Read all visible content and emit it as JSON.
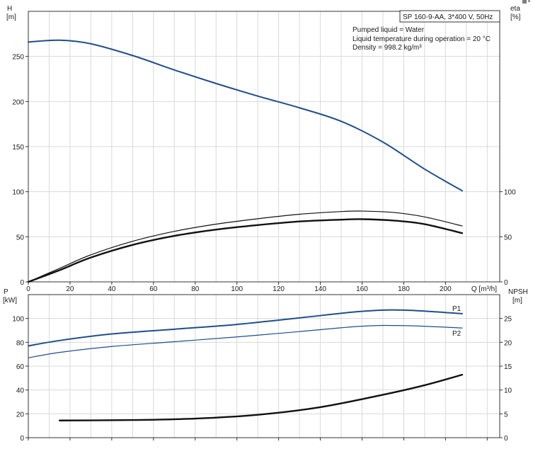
{
  "colors": {
    "blue": "#1f4e8c",
    "black": "#111111",
    "grid": "#d9d9d9"
  },
  "legend_box": {
    "title": "SP 160-9-AA, 3*400 V, 50Hz"
  },
  "info_lines": [
    "Pumped liquid = Water",
    "Liquid temperature during operation = 20 °C",
    "Density = 998.2 kg/m³"
  ],
  "chart_data": [
    {
      "type": "line",
      "panel": "top",
      "left_axis": {
        "label_line1": "H",
        "label_line2": "[m]",
        "ylim": [
          0,
          300
        ],
        "ticks": [
          0,
          50,
          100,
          150,
          200,
          250
        ]
      },
      "right_axis": {
        "label_line1": "eta",
        "label_line2": "[%]",
        "ylim": [
          0,
          300
        ],
        "ticks": [
          0,
          50,
          100
        ]
      },
      "x_axis": {
        "label": "Q [m³/h]",
        "xlim": [
          0,
          226
        ],
        "ticks": [
          0,
          20,
          40,
          60,
          80,
          100,
          120,
          140,
          160,
          180,
          200
        ]
      },
      "series": [
        {
          "key": "H",
          "color": "blue",
          "width": 2,
          "x": [
            0,
            15,
            30,
            50,
            70,
            90,
            110,
            130,
            150,
            170,
            190,
            208
          ],
          "y": [
            266,
            268,
            264,
            251,
            235,
            220,
            206,
            193,
            178,
            155,
            125,
            101
          ]
        },
        {
          "key": "eta",
          "color": "black",
          "width": 2.4,
          "x": [
            0,
            15,
            30,
            50,
            70,
            90,
            110,
            130,
            150,
            160,
            175,
            190,
            208
          ],
          "y": [
            0,
            13,
            27,
            41,
            51,
            58,
            63,
            67,
            69,
            69.5,
            68,
            64,
            54
          ]
        },
        {
          "key": "eta2",
          "color": "black",
          "width": 1.2,
          "x": [
            0,
            15,
            30,
            50,
            70,
            90,
            110,
            130,
            150,
            160,
            175,
            190,
            208
          ],
          "y": [
            0,
            15,
            30,
            45,
            56,
            64,
            70,
            75,
            78,
            78.5,
            77,
            72,
            62
          ]
        }
      ]
    },
    {
      "type": "line",
      "panel": "bottom",
      "left_axis": {
        "label_line1": "P",
        "label_line2": "[kW]",
        "ylim": [
          0,
          120
        ],
        "ticks": [
          0,
          20,
          40,
          60,
          80,
          100
        ]
      },
      "right_axis": {
        "label_line1": "NPSH",
        "label_line2": "[m]",
        "ylim": [
          0,
          30
        ],
        "ticks": [
          0,
          5,
          10,
          15,
          20,
          25
        ]
      },
      "x_axis": {
        "xlim": [
          0,
          226
        ]
      },
      "series": [
        {
          "key": "P1",
          "name": "P1",
          "color": "blue",
          "width": 2,
          "axis": "left",
          "x": [
            0,
            15,
            40,
            70,
            100,
            130,
            160,
            180,
            208
          ],
          "y": [
            77,
            81.5,
            87,
            91,
            95,
            100.5,
            106,
            107,
            104
          ]
        },
        {
          "key": "P2",
          "name": "P2",
          "color": "blue",
          "width": 1.2,
          "axis": "left",
          "x": [
            0,
            15,
            40,
            70,
            100,
            130,
            160,
            180,
            208
          ],
          "y": [
            67,
            71.5,
            76.5,
            80.5,
            84.5,
            89,
            93.5,
            94,
            92
          ]
        },
        {
          "key": "NPSH",
          "color": "black",
          "width": 2.4,
          "axis": "right",
          "x": [
            15,
            50,
            80,
            110,
            140,
            170,
            190,
            208
          ],
          "y": [
            3.6,
            3.7,
            4.0,
            4.8,
            6.4,
            9.0,
            11,
            13.2
          ]
        }
      ]
    }
  ]
}
